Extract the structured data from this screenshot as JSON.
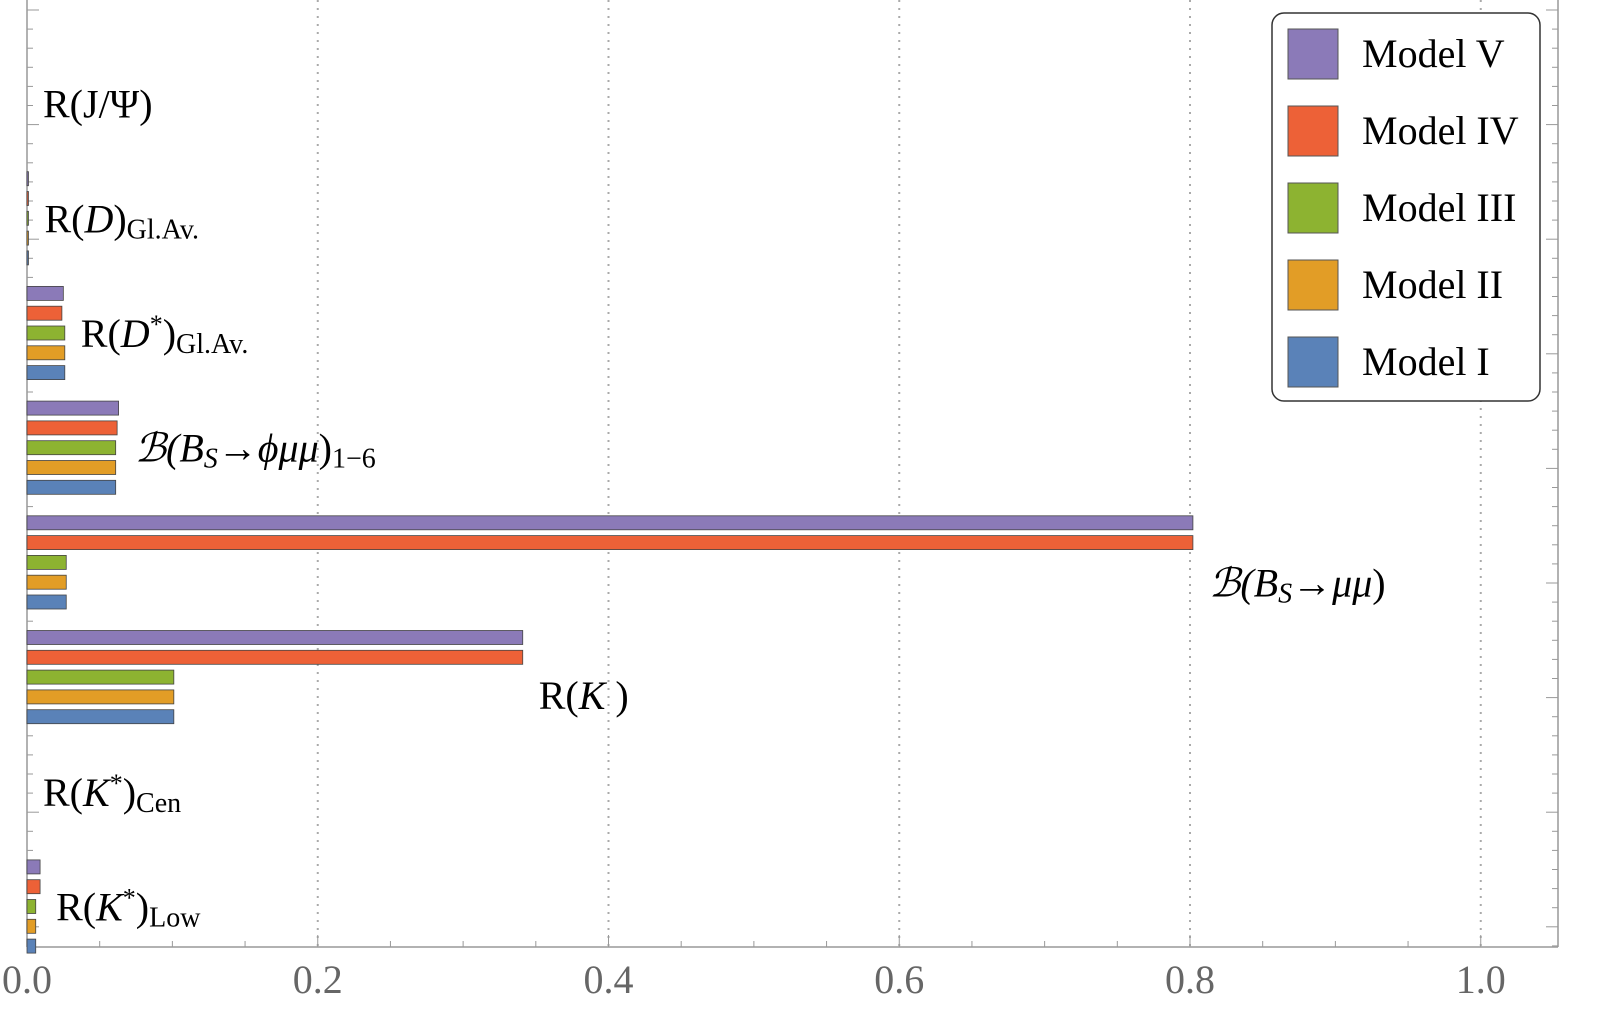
{
  "chart_data": {
    "type": "bar",
    "orientation": "horizontal",
    "xlim": [
      0,
      1.05
    ],
    "x_ticks": [
      "0.0",
      "0.2",
      "0.4",
      "0.6",
      "0.8",
      "1.0"
    ],
    "grid": "vertical dotted",
    "legend_position": "top-right",
    "categories": [
      {
        "label": "R(J/Ψ)",
        "parts": [
          {
            "t": "R(J/Ψ)"
          }
        ]
      },
      {
        "label": "R(D)Gl.Av.",
        "parts": [
          {
            "t": "R("
          },
          {
            "t": "D",
            "i": true
          },
          {
            "t": ")"
          },
          {
            "t": "Gl.Av.",
            "sub": true
          }
        ]
      },
      {
        "label": "R(D*)Gl.Av.",
        "parts": [
          {
            "t": "R("
          },
          {
            "t": "D",
            "i": true
          },
          {
            "t": "*",
            "sup": true
          },
          {
            "t": ")"
          },
          {
            "t": "Gl.Av.",
            "sub": true
          }
        ]
      },
      {
        "label": "ℬ(BS→ϕμμ)1−6",
        "parts": [
          {
            "t": "ℬ(",
            "i": true
          },
          {
            "t": "B",
            "i": true
          },
          {
            "t": "S",
            "sub": true,
            "i": true
          },
          {
            "t": "→ϕμμ",
            "i": true
          },
          {
            "t": ")"
          },
          {
            "t": "1−6",
            "sub": true
          }
        ]
      },
      {
        "label": "ℬ(BS→μμ)",
        "parts": [
          {
            "t": "ℬ(",
            "i": true
          },
          {
            "t": "B",
            "i": true
          },
          {
            "t": "S",
            "sub": true,
            "i": true
          },
          {
            "t": "→μμ",
            "i": true
          },
          {
            "t": ")"
          }
        ]
      },
      {
        "label": "R(K)",
        "parts": [
          {
            "t": "R("
          },
          {
            "t": "K",
            "i": true
          },
          {
            "t": " )"
          }
        ]
      },
      {
        "label": "R(K*)Cen",
        "parts": [
          {
            "t": "R("
          },
          {
            "t": "K",
            "i": true
          },
          {
            "t": "*",
            "sup": true
          },
          {
            "t": ")"
          },
          {
            "t": "Cen",
            "sub": true
          }
        ]
      },
      {
        "label": "R(K*)Low",
        "parts": [
          {
            "t": "R("
          },
          {
            "t": "K",
            "i": true
          },
          {
            "t": "*",
            "sup": true
          },
          {
            "t": ")"
          },
          {
            "t": "Low",
            "sub": true
          }
        ]
      }
    ],
    "series": [
      {
        "name": "Model V",
        "color": "#8b7ab8",
        "values": [
          0.0,
          0.001,
          0.025,
          0.063,
          0.802,
          0.341,
          0.0,
          0.009
        ]
      },
      {
        "name": "Model IV",
        "color": "#ed6137",
        "values": [
          0.0,
          0.001,
          0.024,
          0.062,
          0.802,
          0.341,
          0.0,
          0.009
        ]
      },
      {
        "name": "Model III",
        "color": "#8db331",
        "values": [
          0.0,
          0.001,
          0.026,
          0.061,
          0.027,
          0.101,
          0.0,
          0.006
        ]
      },
      {
        "name": "Model II",
        "color": "#e29d26",
        "values": [
          0.0,
          0.001,
          0.026,
          0.061,
          0.027,
          0.101,
          0.0,
          0.006
        ]
      },
      {
        "name": "Model I",
        "color": "#5a82b8",
        "values": [
          0.0,
          0.001,
          0.026,
          0.061,
          0.027,
          0.101,
          0.0,
          0.006
        ]
      }
    ]
  }
}
